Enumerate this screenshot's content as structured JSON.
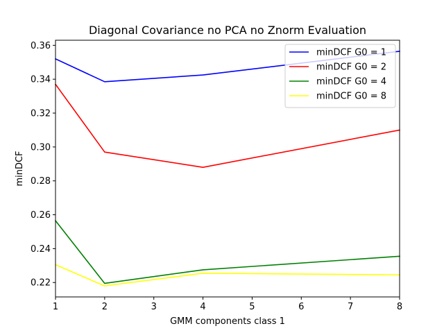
{
  "chart_data": {
    "type": "line",
    "title": "Diagonal Covariance no PCA no Znorm Evaluation",
    "xlabel": "GMM components class 1",
    "ylabel": "minDCF",
    "xlim": [
      1,
      8
    ],
    "ylim": [
      0.2115,
      0.363
    ],
    "x_ticks": [
      "1",
      "2",
      "3",
      "4",
      "5",
      "6",
      "7",
      "8"
    ],
    "y_ticks": [
      "0.22",
      "0.24",
      "0.26",
      "0.28",
      "0.30",
      "0.32",
      "0.34",
      "0.36"
    ],
    "grid": false,
    "legend_position": "top-right",
    "x": [
      1,
      2,
      4,
      8
    ],
    "series": [
      {
        "name": "minDCF G0 = 1",
        "color": "#0000ff",
        "values": [
          0.352,
          0.3385,
          0.3425,
          0.3565
        ]
      },
      {
        "name": "minDCF G0 = 2",
        "color": "#ff0000",
        "values": [
          0.337,
          0.297,
          0.288,
          0.31
        ]
      },
      {
        "name": "minDCF G0 = 4",
        "color": "#008000",
        "values": [
          0.2565,
          0.2195,
          0.2275,
          0.2355
        ]
      },
      {
        "name": "minDCF G0 = 8",
        "color": "#ffff00",
        "values": [
          0.2305,
          0.218,
          0.2255,
          0.2245
        ]
      }
    ]
  }
}
